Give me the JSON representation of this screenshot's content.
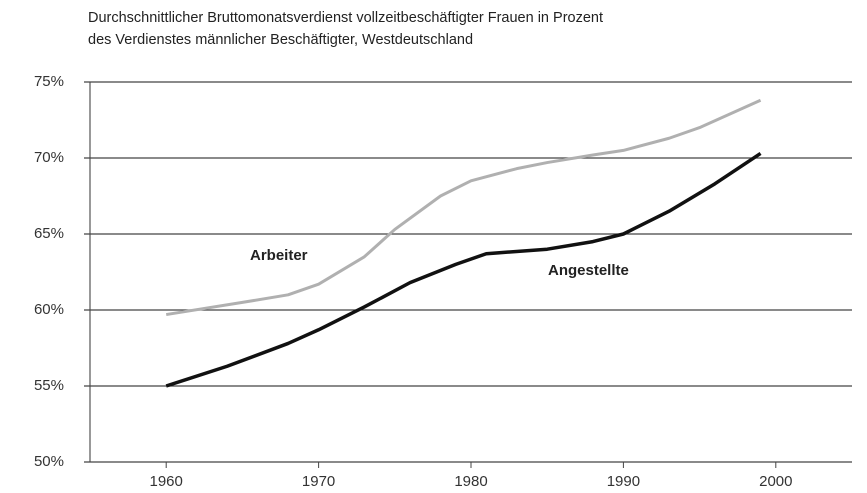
{
  "chart_data": {
    "type": "line",
    "title": [
      "Durchschnittlicher Bruttomonatsverdienst vollzeitbeschäftigter Frauen in Prozent",
      "des Verdienstes männlicher Beschäftigter, Westdeutschland"
    ],
    "annotations": [
      "Arbeiter",
      "Angestellte"
    ],
    "series": [
      {
        "name": "Arbeiter",
        "color": "#b0b0b0",
        "x": [
          1960,
          1965,
          1968,
          1970,
          1973,
          1975,
          1978,
          1980,
          1983,
          1985,
          1988,
          1990,
          1993,
          1995,
          1999
        ],
        "values": [
          59.7,
          60.5,
          61,
          61.7,
          63.5,
          65.3,
          67.5,
          68.5,
          69.3,
          69.7,
          70.2,
          70.5,
          71.3,
          72,
          73.8
        ]
      },
      {
        "name": "Angestellte",
        "color": "#111111",
        "x": [
          1960,
          1964,
          1968,
          1970,
          1973,
          1976,
          1979,
          1981,
          1985,
          1988,
          1990,
          1993,
          1996,
          1999
        ],
        "values": [
          55,
          56.3,
          57.8,
          58.7,
          60.2,
          61.8,
          63,
          63.7,
          64,
          64.5,
          65,
          66.5,
          68.3,
          70.3
        ]
      }
    ],
    "xlim": [
      1955,
      2005
    ],
    "xticks": [
      1960,
      1970,
      1980,
      1990,
      2000
    ],
    "ylim": [
      50,
      75
    ],
    "yticks": [
      {
        "value": 50,
        "label": "50%"
      },
      {
        "value": 55,
        "label": "55%"
      },
      {
        "value": 60,
        "label": "60%"
      },
      {
        "value": 65,
        "label": "65%"
      },
      {
        "value": 70,
        "label": "70%"
      },
      {
        "value": 75,
        "label": "75%"
      }
    ],
    "grid": true
  }
}
